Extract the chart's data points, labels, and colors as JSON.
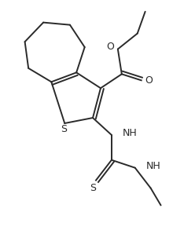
{
  "background": "#ffffff",
  "line_color": "#2a2a2a",
  "line_width": 1.4,
  "figsize": [
    2.48,
    3.12
  ],
  "dpi": 100,
  "xlim": [
    0,
    2.48
  ],
  "ylim": [
    0,
    3.12
  ]
}
